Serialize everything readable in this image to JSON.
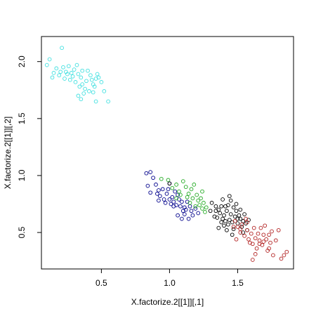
{
  "chart_data": {
    "type": "scatter",
    "xlabel": "X.factorize.2[[1]][,1]",
    "ylabel": "X.factorize.2[[1]][,2]",
    "xlim": [
      0.06,
      1.91
    ],
    "ylim": [
      0.18,
      2.22
    ],
    "x_ticks": [
      0.5,
      1.0,
      1.5
    ],
    "x_tick_labels": [
      "0.5",
      "1.0",
      "1.5"
    ],
    "y_ticks": [
      0.5,
      1.0,
      1.5,
      2.0
    ],
    "y_tick_labels": [
      "0.5",
      "1.0",
      "1.5",
      "2.0"
    ],
    "grid": false,
    "marker": "open-circle",
    "series": [
      {
        "color": "#40E0E0",
        "points": [
          [
            0.21,
            2.12
          ],
          [
            0.12,
            2.02
          ],
          [
            0.1,
            1.97
          ],
          [
            0.17,
            1.94
          ],
          [
            0.15,
            1.9
          ],
          [
            0.14,
            1.86
          ],
          [
            0.19,
            1.88
          ],
          [
            0.22,
            1.95
          ],
          [
            0.24,
            1.91
          ],
          [
            0.26,
            1.96
          ],
          [
            0.28,
            1.9
          ],
          [
            0.3,
            1.93
          ],
          [
            0.32,
            1.97
          ],
          [
            0.33,
            1.89
          ],
          [
            0.35,
            1.86
          ],
          [
            0.27,
            1.84
          ],
          [
            0.31,
            1.82
          ],
          [
            0.34,
            1.78
          ],
          [
            0.36,
            1.8
          ],
          [
            0.38,
            1.76
          ],
          [
            0.39,
            1.83
          ],
          [
            0.4,
            1.92
          ],
          [
            0.42,
            1.88
          ],
          [
            0.43,
            1.84
          ],
          [
            0.44,
            1.8
          ],
          [
            0.46,
            1.85
          ],
          [
            0.45,
            1.78
          ],
          [
            0.47,
            1.89
          ],
          [
            0.48,
            1.86
          ],
          [
            0.5,
            1.82
          ],
          [
            0.52,
            1.74
          ],
          [
            0.55,
            1.65
          ],
          [
            0.46,
            1.65
          ],
          [
            0.33,
            1.7
          ],
          [
            0.35,
            1.67
          ],
          [
            0.37,
            1.72
          ],
          [
            0.41,
            1.74
          ],
          [
            0.23,
            1.85
          ],
          [
            0.2,
            1.91
          ],
          [
            0.29,
            1.87
          ],
          [
            0.36,
            1.92
          ],
          [
            0.44,
            1.73
          ],
          [
            0.25,
            1.89
          ]
        ]
      },
      {
        "color": "#00008B",
        "points": [
          [
            0.83,
            1.02
          ],
          [
            0.86,
            1.03
          ],
          [
            0.88,
            0.98
          ],
          [
            0.84,
            0.91
          ],
          [
            0.86,
            0.85
          ],
          [
            0.9,
            0.92
          ],
          [
            0.92,
            0.87
          ],
          [
            0.93,
            0.82
          ],
          [
            0.95,
            0.88
          ],
          [
            0.96,
            0.79
          ],
          [
            0.98,
            0.84
          ],
          [
            1.0,
            0.79
          ],
          [
            1.01,
            0.75
          ],
          [
            1.02,
            0.81
          ],
          [
            1.03,
            0.77
          ],
          [
            1.05,
            0.74
          ],
          [
            1.06,
            0.83
          ],
          [
            1.07,
            0.79
          ],
          [
            1.08,
            0.73
          ],
          [
            1.09,
            0.77
          ],
          [
            1.1,
            0.69
          ],
          [
            1.11,
            0.72
          ],
          [
            1.12,
            0.7
          ],
          [
            1.13,
            0.77
          ],
          [
            1.15,
            0.73
          ],
          [
            1.16,
            0.69
          ],
          [
            1.17,
            0.65
          ],
          [
            1.19,
            0.71
          ],
          [
            1.21,
            0.67
          ],
          [
            1.14,
            0.62
          ],
          [
            1.06,
            0.65
          ],
          [
            0.92,
            0.78
          ],
          [
            0.97,
            0.76
          ],
          [
            1.04,
            0.86
          ],
          [
            1.0,
            0.93
          ],
          [
            0.91,
            0.84
          ],
          [
            1.09,
            0.62
          ],
          [
            1.11,
            0.66
          ],
          [
            1.03,
            0.73
          ],
          [
            0.99,
            0.88
          ]
        ]
      },
      {
        "color": "#22AA22",
        "points": [
          [
            0.94,
            0.97
          ],
          [
            0.99,
            0.96
          ],
          [
            1.02,
            0.89
          ],
          [
            1.05,
            0.92
          ],
          [
            1.07,
            0.86
          ],
          [
            1.1,
            0.95
          ],
          [
            1.12,
            0.9
          ],
          [
            1.14,
            0.84
          ],
          [
            1.16,
            0.88
          ],
          [
            1.17,
            0.8
          ],
          [
            1.18,
            0.92
          ],
          [
            1.2,
            0.83
          ],
          [
            1.21,
            0.78
          ],
          [
            1.22,
            0.74
          ],
          [
            1.23,
            0.8
          ],
          [
            1.24,
            0.86
          ],
          [
            1.25,
            0.76
          ],
          [
            1.27,
            0.72
          ],
          [
            1.26,
            0.68
          ],
          [
            1.15,
            0.76
          ],
          [
            1.13,
            0.81
          ],
          [
            1.08,
            0.83
          ],
          [
            1.19,
            0.73
          ],
          [
            1.24,
            0.71
          ],
          [
            1.05,
            0.8
          ]
        ]
      },
      {
        "color": "#000000",
        "points": [
          [
            1.0,
            0.93
          ],
          [
            1.31,
            0.76
          ],
          [
            1.34,
            0.69
          ],
          [
            1.35,
            0.63
          ],
          [
            1.36,
            0.7
          ],
          [
            1.37,
            0.67
          ],
          [
            1.38,
            0.73
          ],
          [
            1.39,
            0.79
          ],
          [
            1.4,
            0.65
          ],
          [
            1.41,
            0.6
          ],
          [
            1.42,
            0.69
          ],
          [
            1.43,
            0.74
          ],
          [
            1.44,
            0.82
          ],
          [
            1.45,
            0.78
          ],
          [
            1.45,
            0.66
          ],
          [
            1.46,
            0.59
          ],
          [
            1.47,
            0.72
          ],
          [
            1.48,
            0.64
          ],
          [
            1.49,
            0.69
          ],
          [
            1.5,
            0.58
          ],
          [
            1.51,
            0.65
          ],
          [
            1.52,
            0.62
          ],
          [
            1.53,
            0.55
          ],
          [
            1.54,
            0.6
          ],
          [
            1.55,
            0.66
          ],
          [
            1.56,
            0.58
          ],
          [
            1.57,
            0.52
          ],
          [
            1.38,
            0.59
          ],
          [
            1.36,
            0.54
          ],
          [
            1.4,
            0.56
          ],
          [
            1.42,
            0.52
          ],
          [
            1.33,
            0.64
          ],
          [
            1.47,
            0.53
          ],
          [
            1.44,
            0.61
          ],
          [
            1.52,
            0.7
          ],
          [
            1.49,
            0.75
          ],
          [
            1.41,
            0.73
          ],
          [
            1.46,
            0.48
          ],
          [
            1.54,
            0.5
          ],
          [
            1.39,
            0.62
          ],
          [
            1.5,
            0.62
          ],
          [
            1.43,
            0.57
          ],
          [
            1.34,
            0.73
          ],
          [
            1.58,
            0.61
          ],
          [
            1.3,
            0.69
          ]
        ]
      },
      {
        "color": "#B22222",
        "points": [
          [
            1.48,
            0.6
          ],
          [
            1.5,
            0.55
          ],
          [
            1.52,
            0.5
          ],
          [
            1.53,
            0.57
          ],
          [
            1.55,
            0.47
          ],
          [
            1.57,
            0.52
          ],
          [
            1.58,
            0.44
          ],
          [
            1.6,
            0.49
          ],
          [
            1.61,
            0.4
          ],
          [
            1.62,
            0.54
          ],
          [
            1.63,
            0.45
          ],
          [
            1.64,
            0.36
          ],
          [
            1.65,
            0.49
          ],
          [
            1.66,
            0.43
          ],
          [
            1.67,
            0.54
          ],
          [
            1.68,
            0.39
          ],
          [
            1.69,
            0.48
          ],
          [
            1.7,
            0.56
          ],
          [
            1.71,
            0.44
          ],
          [
            1.72,
            0.34
          ],
          [
            1.74,
            0.41
          ],
          [
            1.75,
            0.51
          ],
          [
            1.76,
            0.3
          ],
          [
            1.78,
            0.43
          ],
          [
            1.82,
            0.27
          ],
          [
            1.84,
            0.3
          ],
          [
            1.86,
            0.33
          ],
          [
            1.8,
            0.52
          ],
          [
            1.57,
            0.59
          ],
          [
            1.52,
            0.53
          ],
          [
            1.59,
            0.41
          ],
          [
            1.66,
            0.4
          ],
          [
            1.63,
            0.31
          ],
          [
            1.69,
            0.42
          ],
          [
            1.73,
            0.36
          ],
          [
            1.47,
            0.55
          ],
          [
            1.56,
            0.62
          ],
          [
            1.61,
            0.26
          ],
          [
            1.73,
            0.48
          ],
          [
            1.49,
            0.44
          ]
        ]
      }
    ]
  }
}
